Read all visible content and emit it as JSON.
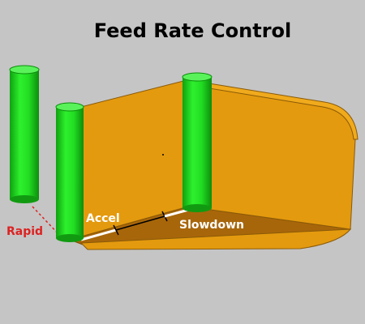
{
  "title": "Feed Rate Control",
  "labels": {
    "rapid": "Rapid",
    "accel": "Accel",
    "slowdown": "Slowdown"
  },
  "colors": {
    "background": "#c5c5c5",
    "tool_green": "#22dd22",
    "pocket_orange": "#e49a0e",
    "pocket_floor": "#a8660a",
    "rapid_red": "#dd2222",
    "feed_path_white": "#ffffff",
    "feed_path_black": "#000000"
  }
}
